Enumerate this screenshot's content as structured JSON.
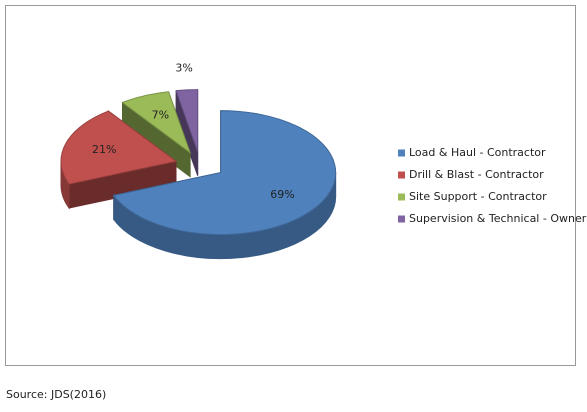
{
  "chart_data": {
    "type": "pie",
    "categories": [
      "Load & Haul - Contractor",
      "Drill & Blast - Contractor",
      "Site Support - Contractor",
      "Supervision & Technical - Owner"
    ],
    "values": [
      69,
      21,
      7,
      3
    ],
    "value_labels": [
      "69%",
      "21%",
      "7%",
      "3%"
    ],
    "colors": [
      "#4f81bd",
      "#c0504d",
      "#9bbb59",
      "#8064a2"
    ],
    "legend": "right",
    "source": "Source: JDS(2016)"
  }
}
